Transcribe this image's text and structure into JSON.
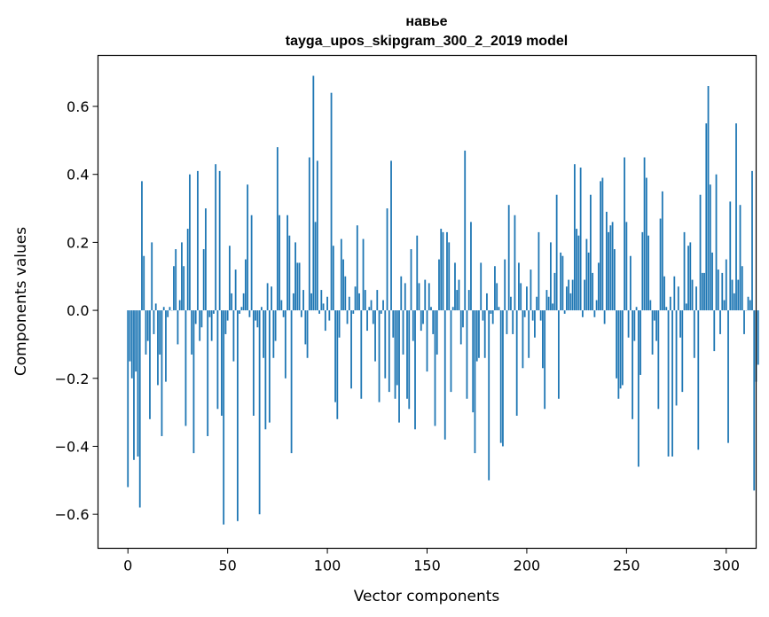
{
  "chart_data": {
    "type": "bar",
    "title": "навье",
    "subtitle": "tayga_upos_skipgram_300_2_2019 model",
    "xlabel": "Vector components",
    "ylabel": "Components values",
    "xlim": [
      -15,
      315
    ],
    "ylim": [
      -0.7,
      0.75
    ],
    "xticks": [
      0,
      50,
      100,
      150,
      200,
      250,
      300
    ],
    "xtick_labels": [
      "0",
      "50",
      "100",
      "150",
      "200",
      "250",
      "300"
    ],
    "yticks": [
      -0.6,
      -0.4,
      -0.2,
      0.0,
      0.2,
      0.4,
      0.6
    ],
    "ytick_labels": [
      "−0.6",
      "−0.4",
      "−0.2",
      "0.0",
      "0.2",
      "0.4",
      "0.6"
    ],
    "bar_color": "#1f77b4",
    "values": [
      -0.52,
      -0.15,
      -0.2,
      -0.44,
      -0.18,
      -0.43,
      -0.58,
      0.38,
      0.16,
      -0.13,
      -0.09,
      -0.32,
      0.2,
      -0.07,
      0.02,
      -0.22,
      -0.13,
      -0.37,
      0.01,
      -0.21,
      -0.02,
      0.01,
      0.0,
      0.13,
      0.18,
      -0.1,
      0.03,
      0.2,
      0.13,
      -0.34,
      0.24,
      0.4,
      -0.13,
      -0.42,
      -0.04,
      0.41,
      -0.09,
      -0.05,
      0.18,
      0.3,
      -0.37,
      -0.02,
      -0.09,
      -0.01,
      0.43,
      -0.29,
      0.41,
      -0.31,
      -0.63,
      -0.07,
      -0.03,
      0.19,
      0.05,
      -0.15,
      0.12,
      -0.62,
      -0.01,
      0.01,
      0.05,
      0.15,
      0.37,
      -0.02,
      0.28,
      -0.31,
      -0.03,
      -0.05,
      -0.6,
      0.01,
      -0.14,
      -0.35,
      0.08,
      -0.33,
      0.07,
      -0.14,
      -0.09,
      0.48,
      0.28,
      0.03,
      -0.02,
      -0.2,
      0.28,
      0.22,
      -0.42,
      0.05,
      0.2,
      0.14,
      0.14,
      -0.02,
      0.06,
      -0.1,
      -0.14,
      0.45,
      0.05,
      0.69,
      0.26,
      0.44,
      -0.01,
      0.06,
      0.02,
      -0.06,
      0.04,
      -0.03,
      0.64,
      0.19,
      -0.27,
      -0.32,
      -0.08,
      0.21,
      0.15,
      0.1,
      -0.04,
      0.04,
      -0.23,
      -0.01,
      0.07,
      0.25,
      0.05,
      -0.26,
      0.21,
      0.06,
      -0.06,
      0.01,
      0.03,
      -0.04,
      -0.15,
      0.06,
      -0.27,
      -0.01,
      0.03,
      -0.2,
      0.3,
      -0.24,
      0.44,
      -0.08,
      -0.26,
      -0.22,
      -0.33,
      0.1,
      -0.13,
      0.08,
      -0.26,
      -0.29,
      0.18,
      -0.09,
      -0.35,
      0.22,
      0.08,
      -0.06,
      -0.04,
      0.09,
      -0.18,
      0.08,
      0.01,
      -0.07,
      -0.34,
      -0.13,
      0.15,
      0.24,
      0.23,
      -0.38,
      0.23,
      0.2,
      -0.24,
      0.01,
      0.14,
      0.06,
      0.09,
      -0.1,
      -0.05,
      0.47,
      -0.26,
      0.06,
      0.26,
      -0.3,
      -0.42,
      -0.15,
      -0.14,
      0.14,
      -0.03,
      -0.14,
      0.05,
      -0.5,
      -0.01,
      -0.04,
      0.13,
      0.08,
      0.01,
      -0.39,
      -0.4,
      0.15,
      -0.07,
      0.31,
      0.04,
      -0.07,
      0.28,
      -0.31,
      0.14,
      0.08,
      -0.17,
      -0.02,
      0.07,
      -0.14,
      0.12,
      -0.03,
      -0.08,
      0.04,
      0.23,
      -0.03,
      -0.17,
      -0.29,
      0.06,
      0.04,
      0.2,
      0.02,
      0.11,
      0.34,
      -0.26,
      0.17,
      0.16,
      -0.01,
      0.07,
      0.09,
      0.05,
      0.09,
      0.43,
      0.24,
      0.22,
      0.42,
      -0.02,
      0.09,
      0.21,
      0.17,
      0.34,
      0.11,
      -0.02,
      0.03,
      0.14,
      0.38,
      0.39,
      -0.04,
      0.29,
      0.23,
      0.25,
      0.26,
      0.18,
      -0.2,
      -0.26,
      -0.23,
      -0.22,
      0.45,
      0.26,
      -0.08,
      0.16,
      -0.32,
      -0.09,
      0.01,
      -0.46,
      -0.19,
      0.23,
      0.45,
      0.39,
      0.22,
      0.03,
      -0.13,
      -0.03,
      -0.09,
      -0.29,
      0.27,
      0.35,
      0.1,
      0.01,
      -0.43,
      0.04,
      -0.43,
      0.1,
      -0.28,
      0.07,
      -0.08,
      -0.24,
      0.23,
      0.02,
      0.19,
      0.2,
      0.09,
      -0.14,
      0.07,
      -0.41,
      0.34,
      0.11,
      0.11,
      0.55,
      0.66,
      0.37,
      0.17,
      -0.12,
      0.4,
      0.12,
      -0.07,
      0.11,
      0.03,
      0.15,
      -0.39,
      0.32,
      0.09,
      0.05,
      0.55,
      0.09,
      0.31,
      0.13,
      -0.07,
      0.0,
      0.04,
      0.03,
      0.41,
      -0.53,
      -0.21,
      -0.16
    ]
  }
}
